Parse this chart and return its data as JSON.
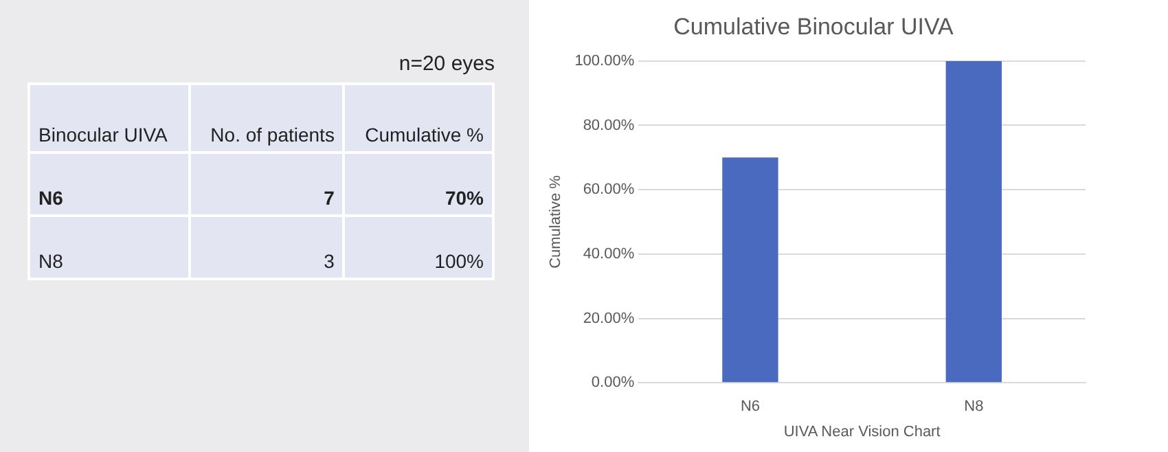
{
  "chart_data": [
    {
      "type": "other",
      "title": "n=20 eyes",
      "xlabel": "Binocular UIVA",
      "data_labels": true,
      "categories": [
        "N6",
        "N8"
      ],
      "series": [
        {
          "name": "No. of patients",
          "values": [
            7,
            3
          ]
        },
        {
          "name": "Cumulative %",
          "values": [
            70,
            100
          ],
          "value_labels": [
            "70%",
            "100%"
          ]
        }
      ]
    },
    {
      "type": "bar",
      "title": "Cumulative Binocular UIVA",
      "xlabel": "UIVA Near Vision Chart",
      "ylabel": "Cumulative %",
      "categories": [
        "N6",
        "N8"
      ],
      "values": [
        70,
        100
      ],
      "color": "#4a6abf",
      "ylim": [
        0,
        100
      ],
      "yticks": [
        {
          "value": 0,
          "label": "0.00%"
        },
        {
          "value": 20,
          "label": "20.00%"
        },
        {
          "value": 40,
          "label": "40.00%"
        },
        {
          "value": 60,
          "label": "60.00%"
        },
        {
          "value": 80,
          "label": "80.00%"
        },
        {
          "value": 100,
          "label": "100.00%"
        }
      ],
      "grid": "y",
      "legend": false
    }
  ]
}
